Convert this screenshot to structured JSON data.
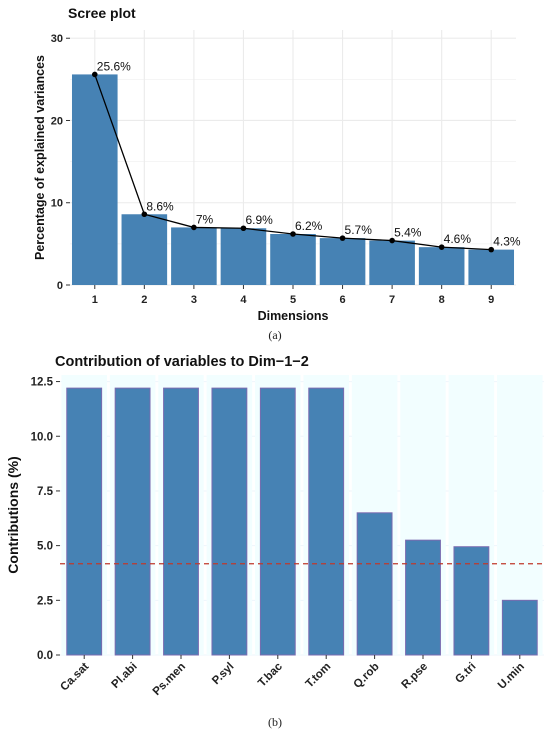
{
  "chart_data": [
    {
      "type": "bar",
      "title": "Scree plot",
      "xlabel": "Dimensions",
      "ylabel": "Percentage of explained variances",
      "categories": [
        "1",
        "2",
        "3",
        "4",
        "5",
        "6",
        "7",
        "8",
        "9"
      ],
      "values": [
        25.6,
        8.6,
        7.0,
        6.9,
        6.2,
        5.7,
        5.4,
        4.6,
        4.3
      ],
      "data_labels": [
        "25.6%",
        "8.6%",
        "7%",
        "6.9%",
        "6.2%",
        "5.7%",
        "5.4%",
        "4.6%",
        "4.3%"
      ],
      "line_overlay": true,
      "ylim": [
        0,
        31
      ],
      "yticks": [
        0,
        10,
        20,
        30
      ],
      "grid": true,
      "caption": "(a)",
      "colors": {
        "bar": "#4682b4",
        "line": "#000000",
        "grid": "#ebebeb"
      }
    },
    {
      "type": "bar",
      "title": "Contribution of variables to Dim−1−2",
      "xlabel": "",
      "ylabel": "Contributions (%)",
      "categories": [
        "Ca.sat",
        "Pl.abi",
        "Ps.men",
        "P.syl",
        "T.bac",
        "T.tom",
        "Q.rob",
        "R.pse",
        "G.tri",
        "U.min"
      ],
      "values": [
        12.2,
        12.2,
        12.2,
        12.2,
        12.2,
        12.2,
        6.5,
        5.25,
        4.95,
        2.5
      ],
      "reference_line": 4.17,
      "ylim": [
        0,
        12.8
      ],
      "yticks": [
        "0.0",
        "2.5",
        "5.0",
        "7.5",
        "10.0",
        "12.5"
      ],
      "grid": true,
      "caption": "(b)",
      "colors": {
        "bar": "#4682b4",
        "bar_outline": "#7a6bb0",
        "reference_line": "#c0392b",
        "grid": "#eef5fb"
      }
    }
  ]
}
